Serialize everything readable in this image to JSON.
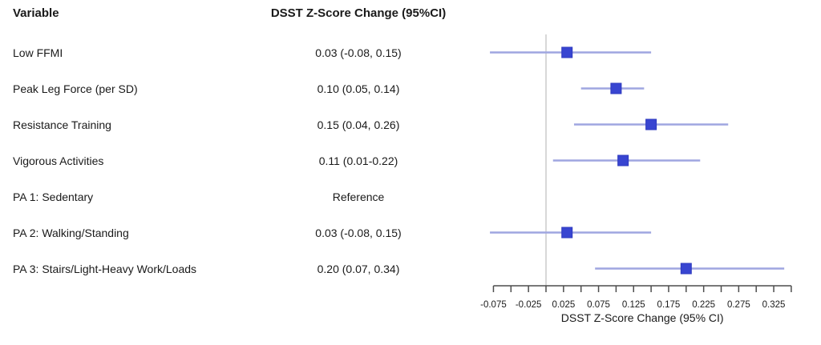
{
  "table": {
    "header_variable": "Variable",
    "header_estimate": "DSST Z-Score Change (95%CI)"
  },
  "chart_data": {
    "type": "forest",
    "title": "",
    "xlabel": "DSST Z-Score Change (95% CI)",
    "reference_value": 0,
    "xlim": [
      -0.0875,
      0.3625
    ],
    "grid": false,
    "rows": [
      {
        "variable": "Low FFMI",
        "estimate_label": "0.03 (-0.08, 0.15)",
        "estimate": 0.03,
        "ci_low": -0.08,
        "ci_high": 0.15
      },
      {
        "variable": "Peak Leg Force (per SD)",
        "estimate_label": "0.10 (0.05, 0.14)",
        "estimate": 0.1,
        "ci_low": 0.05,
        "ci_high": 0.14
      },
      {
        "variable": "Resistance Training",
        "estimate_label": "0.15 (0.04, 0.26)",
        "estimate": 0.15,
        "ci_low": 0.04,
        "ci_high": 0.26
      },
      {
        "variable": "Vigorous Activities",
        "estimate_label": "0.11 (0.01-0.22)",
        "estimate": 0.11,
        "ci_low": 0.01,
        "ci_high": 0.22
      },
      {
        "variable": "PA 1: Sedentary",
        "estimate_label": "Reference",
        "estimate": null,
        "ci_low": null,
        "ci_high": null
      },
      {
        "variable": "PA 2: Walking/Standing",
        "estimate_label": "0.03 (-0.08, 0.15)",
        "estimate": 0.03,
        "ci_low": -0.08,
        "ci_high": 0.15
      },
      {
        "variable": "PA 3: Stairs/Light-Heavy Work/Loads",
        "estimate_label": "0.20 (0.07, 0.34)",
        "estimate": 0.2,
        "ci_low": 0.07,
        "ci_high": 0.34
      }
    ],
    "axis_ticks": [
      -0.075,
      -0.05,
      -0.025,
      0,
      0.025,
      0.05,
      0.075,
      0.1,
      0.125,
      0.15,
      0.175,
      0.2,
      0.225,
      0.25,
      0.275,
      0.3,
      0.325,
      0.35
    ],
    "axis_tick_labels": [
      {
        "value": -0.075,
        "text": "-0.075"
      },
      {
        "value": -0.025,
        "text": "-0.025"
      },
      {
        "value": 0.025,
        "text": "0.025"
      },
      {
        "value": 0.075,
        "text": "0.075"
      },
      {
        "value": 0.125,
        "text": "0.125"
      },
      {
        "value": 0.175,
        "text": "0.175"
      },
      {
        "value": 0.225,
        "text": "0.225"
      },
      {
        "value": 0.275,
        "text": "0.275"
      },
      {
        "value": 0.325,
        "text": "0.325"
      }
    ],
    "colors": {
      "marker": "#3845d1",
      "ci_line": "#9fa6e0",
      "reference_line": "#cccccc",
      "axis": "#4d4d4d",
      "text": "#1a1a1a"
    }
  }
}
